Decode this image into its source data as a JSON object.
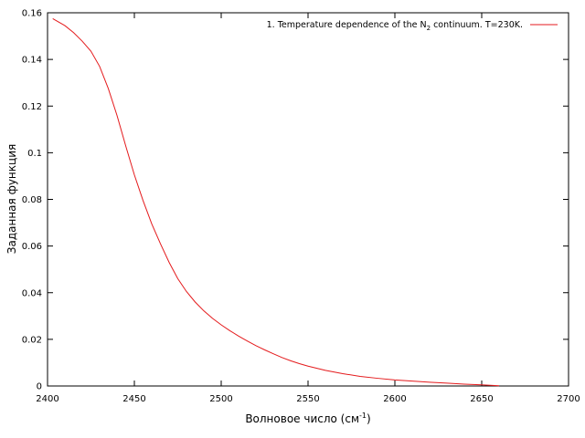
{
  "chart_data": {
    "type": "line",
    "title": "",
    "xlabel_main": "Волновое число (см",
    "xlabel_sup": "-1",
    "xlabel_end": ")",
    "ylabel": "Заданная функция",
    "xlim": [
      2400,
      2700
    ],
    "ylim": [
      0,
      0.16
    ],
    "x_ticks": [
      2400,
      2450,
      2500,
      2550,
      2600,
      2650,
      2700
    ],
    "x_tick_labels": [
      "2400",
      "2450",
      "2500",
      "2550",
      "2600",
      "2650",
      "2700"
    ],
    "y_ticks": [
      0,
      0.02,
      0.04,
      0.06,
      0.08,
      0.1,
      0.12,
      0.14,
      0.16
    ],
    "y_tick_labels": [
      "0",
      "0.02",
      "0.04",
      "0.06",
      "0.08",
      "0.1",
      "0.12",
      "0.14",
      "0.16"
    ],
    "grid": false,
    "legend_position": "top-right",
    "legend_prefix": "1. Temperature dependence of the N",
    "legend_sub": "2",
    "legend_suffix": " continuum. T=230K.",
    "series_color": "#e41a1c",
    "series": [
      {
        "x": [
          2403,
          2410,
          2415,
          2420,
          2425,
          2430,
          2435,
          2440,
          2445,
          2450,
          2455,
          2460,
          2465,
          2470,
          2475,
          2480,
          2485,
          2490,
          2495,
          2500,
          2505,
          2510,
          2515,
          2520,
          2525,
          2530,
          2535,
          2540,
          2545,
          2550,
          2560,
          2570,
          2580,
          2590,
          2600,
          2610,
          2620,
          2630,
          2640,
          2650,
          2655,
          2660
        ],
        "y": [
          0.1575,
          0.1545,
          0.1515,
          0.1478,
          0.1435,
          0.137,
          0.1275,
          0.116,
          0.103,
          0.0905,
          0.0795,
          0.0695,
          0.061,
          0.053,
          0.046,
          0.0405,
          0.036,
          0.0322,
          0.029,
          0.0262,
          0.0237,
          0.0214,
          0.0193,
          0.0173,
          0.0155,
          0.0138,
          0.0122,
          0.0108,
          0.0096,
          0.0085,
          0.0067,
          0.0053,
          0.0041,
          0.0033,
          0.0026,
          0.0021,
          0.0016,
          0.0012,
          0.0008,
          0.0005,
          0.0003,
          0.0001
        ]
      }
    ]
  }
}
